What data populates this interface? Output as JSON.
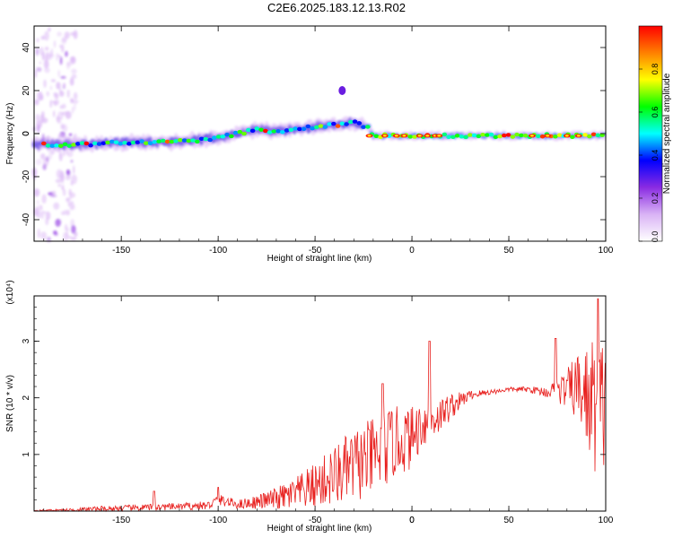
{
  "title": "C2E6.2025.183.12.13.R02",
  "chart_data": [
    {
      "type": "heatmap",
      "xlabel": "Height of straight line (km)",
      "ylabel": "Frequency (Hz)",
      "xlim": [
        -195,
        100
      ],
      "ylim": [
        -50,
        50
      ],
      "x_ticks": [
        "-150",
        "-100",
        "-50",
        "0",
        "50",
        "100"
      ],
      "y_ticks": [
        "-40",
        "-20",
        "0",
        "20",
        "40"
      ],
      "colorbar": {
        "label": "Normalized spectral amplitude",
        "range": [
          0,
          1
        ],
        "ticks": [
          "0.0",
          "0.2",
          "0.4",
          "0.6",
          "0.8"
        ],
        "colors": [
          "#ffffff",
          "#d9b3f5",
          "#8a2be2",
          "#0000ff",
          "#00ffff",
          "#00ff00",
          "#ffff00",
          "#ff8000",
          "#ff0000"
        ]
      },
      "ridge": {
        "x": [
          -190,
          -170,
          -150,
          -130,
          -110,
          -100,
          -90,
          -80,
          -70,
          -60,
          -50,
          -40,
          -30,
          -22,
          -20,
          0,
          20,
          50,
          80,
          95
        ],
        "freq": [
          -5,
          -5,
          -4,
          -4,
          -3,
          -2,
          0,
          2,
          1,
          2,
          3,
          4,
          5,
          3,
          -1,
          -1,
          -1,
          -1,
          -1,
          -1
        ]
      },
      "blob": {
        "x": -36,
        "freq": 20
      }
    },
    {
      "type": "line",
      "xlabel": "Height of straight line (km)",
      "ylabel": "SNR (10 * v/v)",
      "scale_label": "(x10⁴)",
      "xlim": [
        -195,
        100
      ],
      "ylim": [
        0,
        3.8
      ],
      "x_ticks": [
        "-150",
        "-100",
        "-50",
        "0",
        "50",
        "100"
      ],
      "y_ticks": [
        "1",
        "2",
        "3"
      ],
      "color": "#e8201e",
      "envelope": {
        "x": [
          -195,
          -180,
          -160,
          -140,
          -120,
          -105,
          -100,
          -90,
          -80,
          -70,
          -60,
          -50,
          -40,
          -30,
          -20,
          -15,
          -10,
          -5,
          0,
          5,
          10,
          15,
          20,
          25,
          30,
          40,
          50,
          60,
          70,
          80,
          85,
          90,
          95,
          100
        ],
        "mean": [
          0.01,
          0.02,
          0.04,
          0.06,
          0.08,
          0.1,
          0.2,
          0.12,
          0.16,
          0.22,
          0.3,
          0.45,
          0.62,
          0.8,
          0.95,
          1.05,
          1.2,
          1.25,
          1.3,
          1.55,
          1.6,
          1.7,
          1.85,
          1.95,
          2.05,
          2.1,
          2.15,
          2.15,
          2.1,
          2.15,
          2.2,
          2.0,
          1.9,
          1.8
        ],
        "spread": [
          0.01,
          0.02,
          0.05,
          0.06,
          0.06,
          0.08,
          0.1,
          0.08,
          0.12,
          0.2,
          0.3,
          0.4,
          0.55,
          0.65,
          0.7,
          0.7,
          0.65,
          0.6,
          0.55,
          0.45,
          0.35,
          0.3,
          0.25,
          0.15,
          0.08,
          0.05,
          0.04,
          0.05,
          0.1,
          0.35,
          0.6,
          0.9,
          1.3,
          1.2
        ]
      },
      "spikes": [
        {
          "x": -133,
          "y": 0.35
        },
        {
          "x": -100,
          "y": 0.42
        },
        {
          "x": -15,
          "y": 2.25
        },
        {
          "x": 9,
          "y": 3.0
        },
        {
          "x": 74,
          "y": 3.05
        },
        {
          "x": 96,
          "y": 3.75
        }
      ]
    }
  ]
}
